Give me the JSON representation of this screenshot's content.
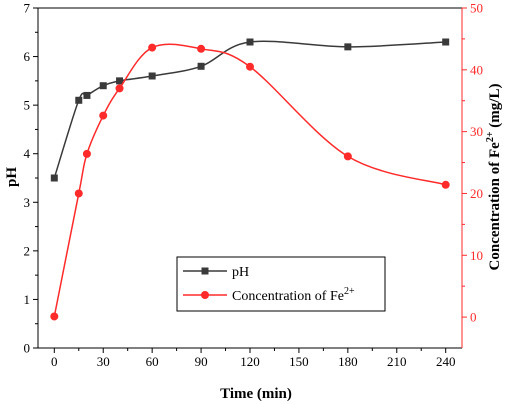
{
  "chart_data": {
    "type": "line",
    "x": [
      0,
      15,
      20,
      30,
      40,
      60,
      90,
      120,
      180,
      240
    ],
    "xlabel": "Time (min)",
    "xlim": [
      -10,
      250
    ],
    "xticks": [
      "0",
      "30",
      "60",
      "90",
      "120",
      "150",
      "180",
      "210",
      "240"
    ],
    "ylabel_left": "pH",
    "ylim_left": [
      0,
      7
    ],
    "yticks_left": [
      "0",
      "1",
      "2",
      "3",
      "4",
      "5",
      "6",
      "7"
    ],
    "ylabel_right": {
      "main": "Concentration of Fe",
      "sup": "2+",
      "tail": " (mg/L)"
    },
    "ylim_right": [
      -5,
      50
    ],
    "yticks_right": [
      "0",
      "10",
      "20",
      "30",
      "40",
      "50"
    ],
    "series": [
      {
        "name": "pH",
        "axis": "left",
        "color": "#3a3a3a",
        "marker": "square",
        "values": [
          3.5,
          5.1,
          5.2,
          5.4,
          5.5,
          5.6,
          5.8,
          6.3,
          6.2,
          6.3
        ]
      },
      {
        "name": {
          "main": "Concentration of Fe",
          "sup": "2+"
        },
        "axis": "right",
        "color": "#ff2a2a",
        "marker": "circle",
        "values": [
          0.1,
          20.0,
          26.4,
          32.6,
          37.0,
          43.6,
          43.4,
          40.5,
          26.0,
          21.4
        ]
      }
    ],
    "axis_colors": {
      "left": "#000000",
      "right": "#ff2a2a"
    },
    "grid": false,
    "legend_position": "center-left"
  }
}
